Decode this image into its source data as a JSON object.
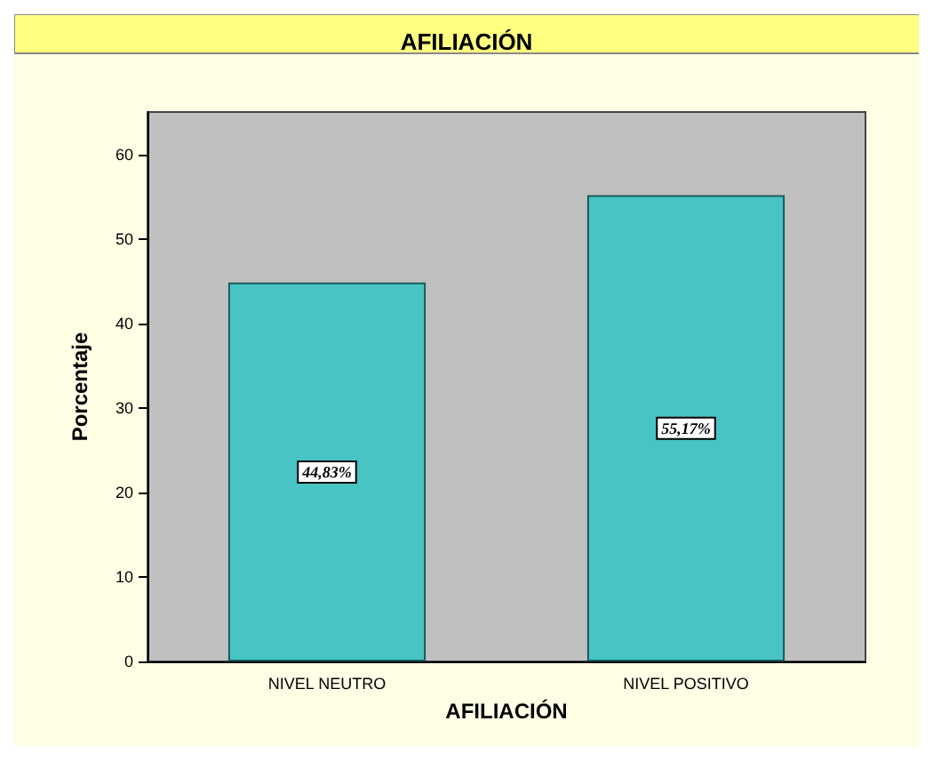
{
  "chart_data": {
    "type": "bar",
    "title": "AFILIACIÓN",
    "xlabel": "AFILIACIÓN",
    "ylabel": "Porcentaje",
    "categories": [
      "NIVEL NEUTRO",
      "NIVEL POSITIVO"
    ],
    "values": [
      44.83,
      55.17
    ],
    "value_labels": [
      "44,83%",
      "55,17%"
    ],
    "color": "#48c4c4",
    "ylim": [
      0,
      65
    ],
    "yticks": [
      0,
      10,
      20,
      30,
      40,
      50,
      60
    ],
    "grid": false
  }
}
